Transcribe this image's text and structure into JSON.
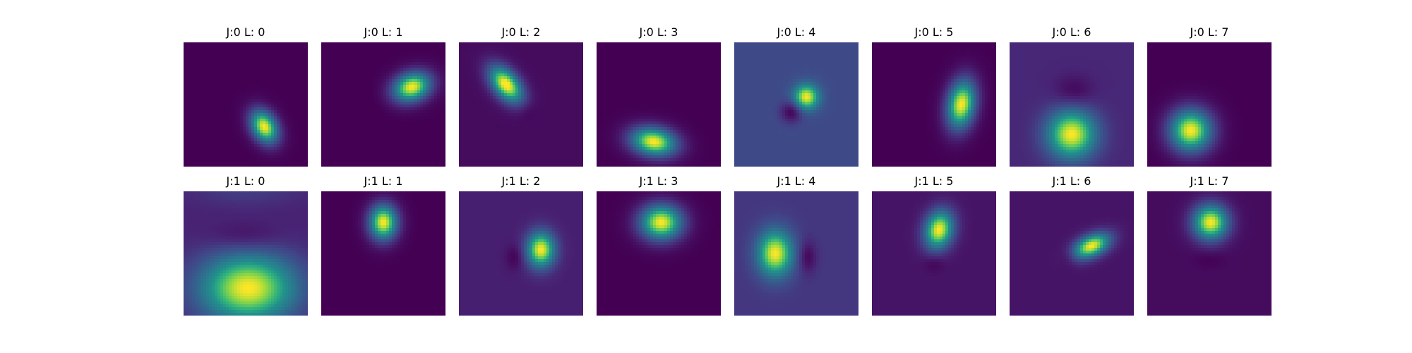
{
  "chart_data": {
    "type": "heatmap",
    "colormap": "viridis",
    "axes_visible": false,
    "rows": 2,
    "cols": 8,
    "panels": [
      {
        "title": "J:0 L: 0",
        "background": 0.0,
        "blobs": [
          {
            "cx": 0.65,
            "cy": 0.68,
            "sx": 0.07,
            "sy": 0.1,
            "angle": -30,
            "amp": 1.0
          }
        ]
      },
      {
        "title": "J:0 L: 1",
        "background": 0.0,
        "blobs": [
          {
            "cx": 0.73,
            "cy": 0.36,
            "sx": 0.11,
            "sy": 0.08,
            "angle": -20,
            "amp": 1.0
          },
          {
            "cx": 0.3,
            "cy": 0.6,
            "sx": 0.16,
            "sy": 0.16,
            "angle": 0,
            "amp": -0.02
          }
        ]
      },
      {
        "title": "J:0 L: 2",
        "background": 0.04,
        "blobs": [
          {
            "cx": 0.38,
            "cy": 0.34,
            "sx": 0.07,
            "sy": 0.12,
            "angle": -40,
            "amp": 1.0
          },
          {
            "cx": 0.55,
            "cy": 0.55,
            "sx": 0.06,
            "sy": 0.06,
            "angle": 0,
            "amp": -0.05
          }
        ]
      },
      {
        "title": "J:0 L: 3",
        "background": 0.0,
        "blobs": [
          {
            "cx": 0.46,
            "cy": 0.8,
            "sx": 0.13,
            "sy": 0.08,
            "angle": 10,
            "amp": 1.0
          }
        ]
      },
      {
        "title": "J:0 L: 4",
        "background": 0.28,
        "blobs": [
          {
            "cx": 0.58,
            "cy": 0.44,
            "sx": 0.07,
            "sy": 0.07,
            "angle": 0,
            "amp": 0.72
          },
          {
            "cx": 0.46,
            "cy": 0.56,
            "sx": 0.06,
            "sy": 0.06,
            "angle": 0,
            "amp": -0.28
          }
        ]
      },
      {
        "title": "J:0 L: 5",
        "background": 0.0,
        "blobs": [
          {
            "cx": 0.72,
            "cy": 0.5,
            "sx": 0.08,
            "sy": 0.14,
            "angle": 10,
            "amp": 1.0
          }
        ]
      },
      {
        "title": "J:0 L: 6",
        "background": 0.14,
        "blobs": [
          {
            "cx": 0.5,
            "cy": 0.74,
            "sx": 0.14,
            "sy": 0.14,
            "angle": 0,
            "amp": 0.86
          },
          {
            "cx": 0.52,
            "cy": 0.4,
            "sx": 0.11,
            "sy": 0.09,
            "angle": 0,
            "amp": -0.13
          }
        ]
      },
      {
        "title": "J:0 L: 7",
        "background": 0.0,
        "blobs": [
          {
            "cx": 0.35,
            "cy": 0.71,
            "sx": 0.12,
            "sy": 0.12,
            "angle": 0,
            "amp": 1.0
          }
        ]
      },
      {
        "title": "J:1 L: 0",
        "background": 0.12,
        "blobs": [
          {
            "cx": 0.52,
            "cy": 0.78,
            "sx": 0.28,
            "sy": 0.2,
            "angle": 0,
            "amp": 0.88
          },
          {
            "cx": 0.5,
            "cy": 0.37,
            "sx": 0.2,
            "sy": 0.08,
            "angle": 0,
            "amp": -0.11
          },
          {
            "cx": 0.5,
            "cy": 0.0,
            "sx": 0.3,
            "sy": 0.08,
            "angle": 0,
            "amp": 0.1
          }
        ]
      },
      {
        "title": "J:1 L: 1",
        "background": 0.0,
        "blobs": [
          {
            "cx": 0.5,
            "cy": 0.25,
            "sx": 0.08,
            "sy": 0.1,
            "angle": 0,
            "amp": 1.0
          }
        ]
      },
      {
        "title": "J:1 L: 2",
        "background": 0.11,
        "blobs": [
          {
            "cx": 0.66,
            "cy": 0.47,
            "sx": 0.08,
            "sy": 0.1,
            "angle": 0,
            "amp": 0.89
          },
          {
            "cx": 0.45,
            "cy": 0.53,
            "sx": 0.05,
            "sy": 0.07,
            "angle": 0,
            "amp": -0.11
          }
        ]
      },
      {
        "title": "J:1 L: 3",
        "background": 0.0,
        "blobs": [
          {
            "cx": 0.52,
            "cy": 0.25,
            "sx": 0.12,
            "sy": 0.1,
            "angle": 0,
            "amp": 1.0
          }
        ]
      },
      {
        "title": "J:1 L: 4",
        "background": 0.2,
        "blobs": [
          {
            "cx": 0.33,
            "cy": 0.5,
            "sx": 0.1,
            "sy": 0.13,
            "angle": 0,
            "amp": 0.8
          },
          {
            "cx": 0.59,
            "cy": 0.53,
            "sx": 0.05,
            "sy": 0.09,
            "angle": 0,
            "amp": -0.19
          }
        ]
      },
      {
        "title": "J:1 L: 5",
        "background": 0.07,
        "blobs": [
          {
            "cx": 0.54,
            "cy": 0.31,
            "sx": 0.08,
            "sy": 0.11,
            "angle": 15,
            "amp": 0.93
          },
          {
            "cx": 0.5,
            "cy": 0.58,
            "sx": 0.06,
            "sy": 0.05,
            "angle": 0,
            "amp": -0.07
          }
        ]
      },
      {
        "title": "J:1 L: 6",
        "background": 0.07,
        "blobs": [
          {
            "cx": 0.66,
            "cy": 0.44,
            "sx": 0.11,
            "sy": 0.06,
            "angle": -25,
            "amp": 0.93
          },
          {
            "cx": 0.47,
            "cy": 0.53,
            "sx": 0.05,
            "sy": 0.06,
            "angle": 0,
            "amp": -0.07
          }
        ]
      },
      {
        "title": "J:1 L: 7",
        "background": 0.04,
        "blobs": [
          {
            "cx": 0.51,
            "cy": 0.25,
            "sx": 0.1,
            "sy": 0.1,
            "angle": 0,
            "amp": 0.96
          },
          {
            "cx": 0.5,
            "cy": 0.55,
            "sx": 0.09,
            "sy": 0.05,
            "angle": 0,
            "amp": -0.04
          }
        ]
      }
    ]
  }
}
